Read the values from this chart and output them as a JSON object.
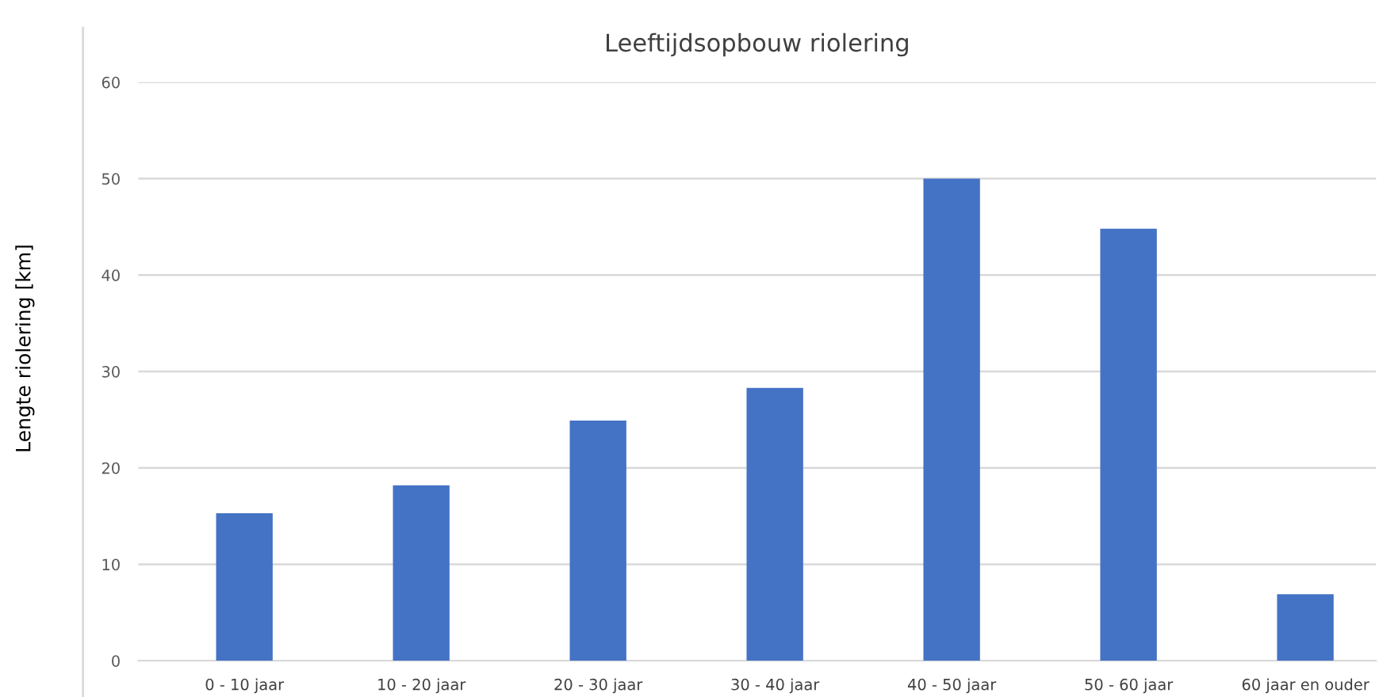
{
  "chart_data": {
    "type": "bar",
    "title": "Leeftijdsopbouw riolering",
    "ylabel": "Lengte riolering [km]",
    "categories": [
      "0 - 10 jaar",
      "10 - 20 jaar",
      "20 - 30 jaar",
      "30 - 40 jaar",
      "40 - 50 jaar",
      "50 - 60 jaar",
      "60 jaar en ouder"
    ],
    "values": [
      15.3,
      18.2,
      24.9,
      28.3,
      50.0,
      44.8,
      6.9
    ],
    "color": "#4472c4",
    "ylim": [
      0,
      60
    ],
    "yticks": [
      0,
      10,
      20,
      30,
      40,
      50,
      60
    ],
    "grid": "y",
    "legend": false
  }
}
